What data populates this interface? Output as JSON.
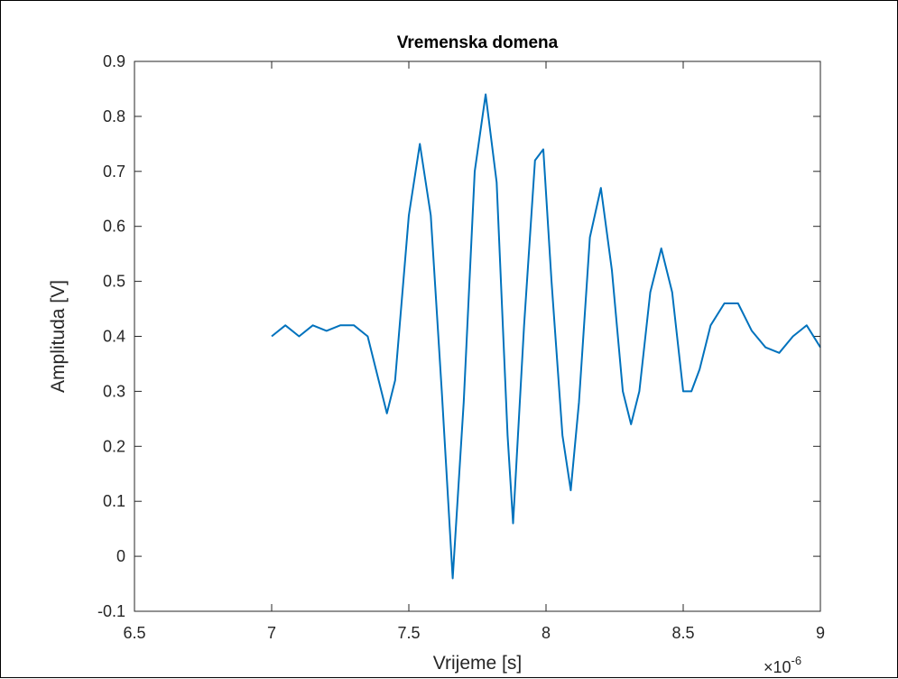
{
  "chart_data": {
    "type": "line",
    "title": "Vremenska domena",
    "xlabel": "Vrijeme [s]",
    "ylabel": "Amplituda [V]",
    "x_multiplier": {
      "base": "×10",
      "exponent": "-6"
    },
    "xlim": [
      6.5,
      9
    ],
    "ylim": [
      -0.1,
      0.9
    ],
    "x_ticks": [
      6.5,
      7,
      7.5,
      8,
      8.5,
      9
    ],
    "y_ticks": [
      -0.1,
      0,
      0.1,
      0.2,
      0.3,
      0.4,
      0.5,
      0.6,
      0.7,
      0.8,
      0.9
    ],
    "x_tick_labels": [
      "6.5",
      "7",
      "7.5",
      "8",
      "8.5",
      "9"
    ],
    "y_tick_labels": [
      "-0.1",
      "0",
      "0.1",
      "0.2",
      "0.3",
      "0.4",
      "0.5",
      "0.6",
      "0.7",
      "0.8",
      "0.9"
    ],
    "grid": false,
    "line_color": "#0072BD",
    "series": [
      {
        "x": [
          7.0,
          7.05,
          7.1,
          7.15,
          7.2,
          7.25,
          7.3,
          7.35,
          7.38,
          7.42,
          7.45,
          7.5,
          7.54,
          7.58,
          7.62,
          7.66,
          7.7,
          7.74,
          7.78,
          7.82,
          7.86,
          7.88,
          7.92,
          7.96,
          7.99,
          8.02,
          8.06,
          8.09,
          8.12,
          8.16,
          8.2,
          8.24,
          8.28,
          8.31,
          8.34,
          8.38,
          8.42,
          8.46,
          8.5,
          8.53,
          8.56,
          8.6,
          8.65,
          8.7,
          8.75,
          8.8,
          8.85,
          8.9,
          8.95,
          9.0
        ],
        "y": [
          0.4,
          0.42,
          0.4,
          0.42,
          0.41,
          0.42,
          0.42,
          0.4,
          0.34,
          0.26,
          0.32,
          0.62,
          0.75,
          0.62,
          0.3,
          -0.04,
          0.28,
          0.7,
          0.84,
          0.68,
          0.22,
          0.06,
          0.42,
          0.72,
          0.74,
          0.5,
          0.22,
          0.12,
          0.28,
          0.58,
          0.67,
          0.52,
          0.3,
          0.24,
          0.3,
          0.48,
          0.56,
          0.48,
          0.3,
          0.3,
          0.34,
          0.42,
          0.46,
          0.46,
          0.41,
          0.38,
          0.37,
          0.4,
          0.42,
          0.38
        ]
      }
    ]
  }
}
